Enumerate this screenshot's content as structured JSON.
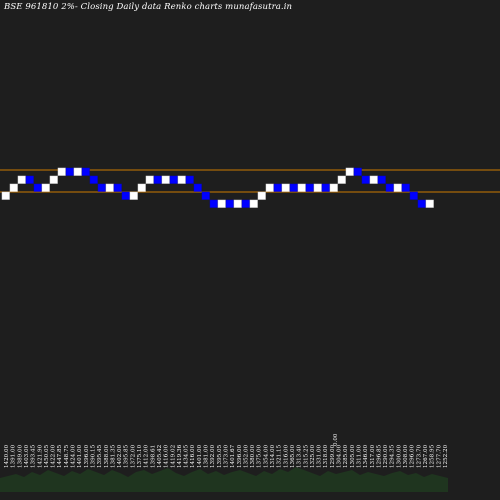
{
  "header": {
    "title": "BSE 961810  2%-  Closing Daily data  Renko  charts munafasutra.in"
  },
  "colors": {
    "background": "#1e1e1e",
    "up_brick": "#ffffff",
    "down_brick": "#0000ff",
    "resistance_line": "#cc7a00",
    "volume": "#1f3b1f",
    "label": "#ffffff"
  },
  "chart_data": {
    "type": "renko",
    "brick_size_label": "2%",
    "moves": [
      1,
      1,
      1,
      -1,
      -1,
      1,
      1,
      1,
      -1,
      1,
      -1,
      -1,
      -1,
      1,
      -1,
      -1,
      1,
      1,
      1,
      -1,
      1,
      -1,
      1,
      -1,
      -1,
      -1,
      -1,
      1,
      -1,
      1,
      -1,
      1,
      1,
      1,
      -1,
      1,
      -1,
      1,
      -1,
      1,
      -1,
      1,
      1,
      1,
      -1,
      -1,
      1,
      -1,
      -1,
      1,
      -1,
      -1,
      -1,
      1
    ],
    "resistance_levels": [
      1442.5,
      1412.5
    ],
    "tick_labels": [
      "1420.00",
      "1391.00",
      "1389.00",
      "1403.00",
      "1393.45",
      "1421.90",
      "1450.05",
      "1422.00",
      "1447.85",
      "1448.75",
      "1424.00",
      "1401.00",
      "1396.00",
      "1390.15",
      "1395.45",
      "1388.00",
      "1381.35",
      "1402.00",
      "1395.85",
      "1372.00",
      "1375.10",
      "1412.00",
      "1398.61",
      "1405.42",
      "1416.00",
      "1419.02",
      "1419.36",
      "1434.05",
      "1416.00",
      "1401.00",
      "1381.00",
      "1392.00",
      "1395.05",
      "1373.00",
      "1401.67",
      "1396.00",
      "1352.00",
      "1380.00",
      "1375.00",
      "1354.00",
      "1314.00",
      "1321.15",
      "1316.00",
      "1365.00",
      "1313.40",
      "1315.25",
      "1325.00",
      "1331.00",
      "1318.00",
      "1299.00",
      "1304.00",
      "1285.00",
      "1305.00",
      "1311.00",
      "1346.00",
      "1317.00",
      "1296.85",
      "1290.00",
      "1294.35",
      "1300.00",
      "1308.00",
      "1296.00",
      "1273.70",
      "1267.00",
      "1258.95",
      "1277.70",
      "1252.20"
    ],
    "volume_marker": "0.00",
    "grid": false
  }
}
